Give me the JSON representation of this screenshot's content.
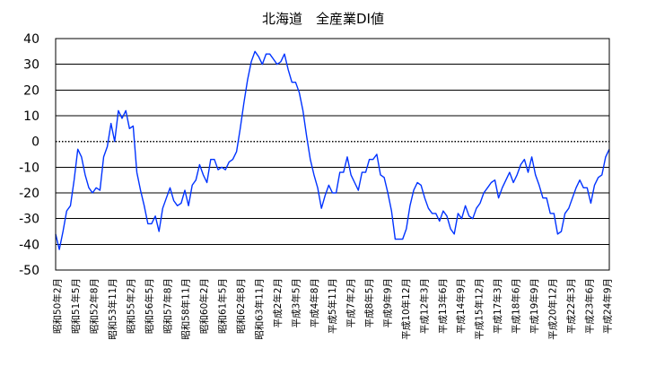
{
  "chart_data": {
    "type": "line",
    "title": "北海道　全産業DI値",
    "xlabel": "",
    "ylabel": "",
    "ylim": [
      -50,
      40
    ],
    "yticks": [
      40,
      30,
      20,
      10,
      0,
      -10,
      -20,
      -30,
      -40,
      -50
    ],
    "grid": true,
    "legend": "none",
    "x_tick_labels": [
      "昭和50年2月",
      "昭和51年5月",
      "昭和52年8月",
      "昭和53年11月",
      "昭和55年2月",
      "昭和56年5月",
      "昭和57年8月",
      "昭和58年11月",
      "昭和60年2月",
      "昭和61年5月",
      "昭和62年8月",
      "昭和63年11月",
      "平成2年2月",
      "平成3年5月",
      "平成4年8月",
      "平成5年11月",
      "平成7年2月",
      "平成8年5月",
      "平成9年9月",
      "平成10年12月",
      "平成12年3月",
      "平成13年6月",
      "平成14年9月",
      "平成15年12月",
      "平成17年3月",
      "平成18年6月",
      "平成19年9月",
      "平成20年12月",
      "平成22年3月",
      "平成23年6月",
      "平成24年9月"
    ],
    "series": [
      {
        "color": "#0033ff",
        "values": [
          -36,
          -42,
          -35,
          -27,
          -25,
          -15,
          -3,
          -6,
          -13,
          -18,
          -20,
          -18,
          -19,
          -6,
          -2,
          7,
          0,
          12,
          9,
          12,
          5,
          6,
          -12,
          -19,
          -25,
          -32,
          -32,
          -29,
          -35,
          -26,
          -22,
          -18,
          -23,
          -25,
          -24,
          -19,
          -25,
          -17,
          -15,
          -9,
          -13,
          -16,
          -7,
          -7,
          -11,
          -10,
          -11,
          -8,
          -7,
          -4,
          5,
          15,
          24,
          31,
          35,
          33,
          30,
          34,
          34,
          32,
          30,
          31,
          34,
          28,
          23,
          23,
          19,
          12,
          2,
          -7,
          -13,
          -18,
          -26,
          -21,
          -17,
          -20,
          -20,
          -12,
          -12,
          -6,
          -13,
          -16,
          -19,
          -12,
          -12,
          -7,
          -7,
          -5,
          -13,
          -14,
          -20,
          -27,
          -38,
          -38,
          -38,
          -34,
          -25,
          -19,
          -16,
          -17,
          -22,
          -26,
          -28,
          -28,
          -31,
          -27,
          -29,
          -34,
          -36,
          -28,
          -30,
          -25,
          -29,
          -30,
          -26,
          -24,
          -20,
          -18,
          -16,
          -15,
          -22,
          -18,
          -15,
          -12,
          -16,
          -13,
          -9,
          -7,
          -12,
          -6,
          -13,
          -17,
          -22,
          -22,
          -28,
          -28,
          -36,
          -35,
          -28,
          -26,
          -22,
          -18,
          -15,
          -18,
          -18,
          -24,
          -17,
          -14,
          -13,
          -6,
          -3
        ]
      }
    ]
  }
}
